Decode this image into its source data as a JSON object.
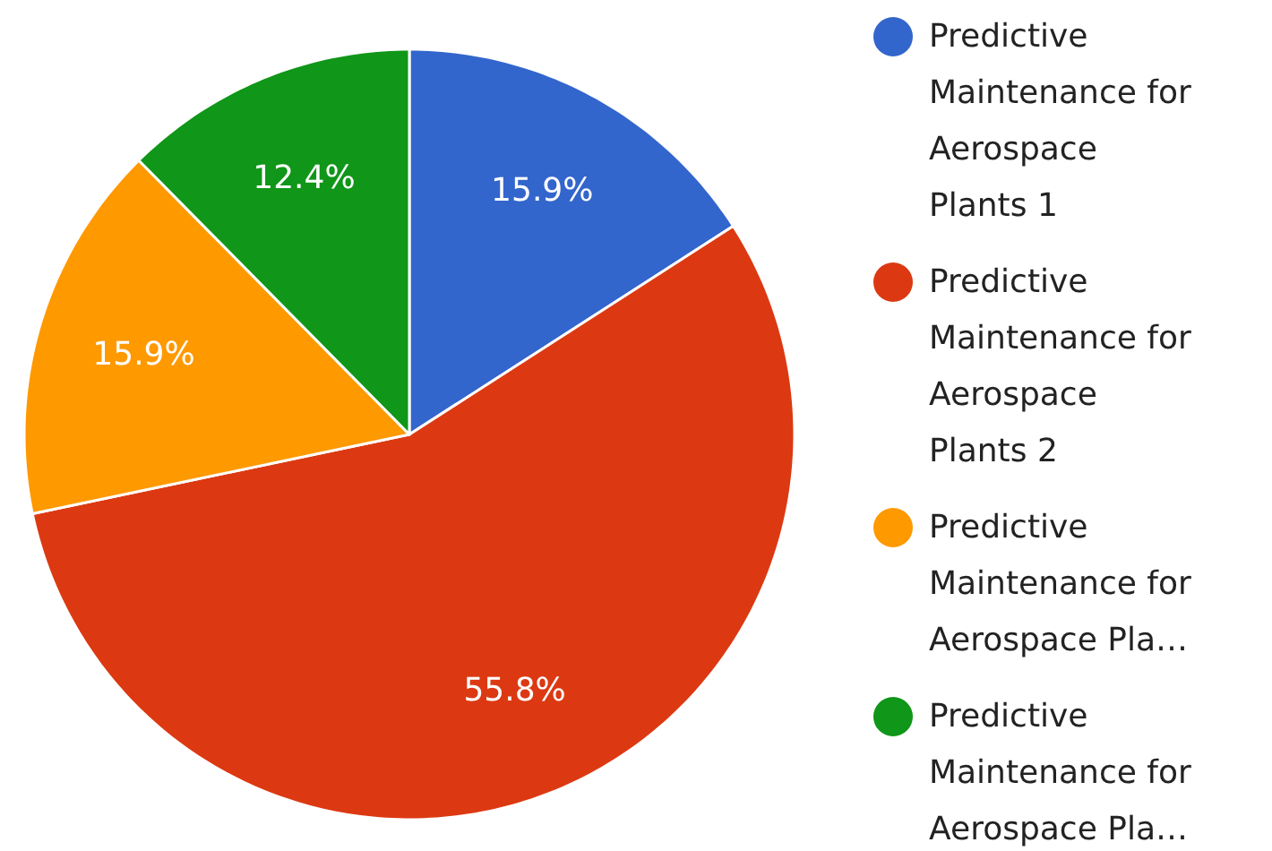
{
  "chart_data": {
    "type": "pie",
    "categories": [
      "Predictive Maintenance for Aerospace Plants 1",
      "Predictive Maintenance for Aerospace Plants 2",
      "Predictive Maintenance for Aerospace Pla…",
      "Predictive Maintenance for Aerospace Pla…"
    ],
    "values": [
      15.9,
      55.8,
      15.9,
      12.4
    ],
    "colors": [
      "#3366cc",
      "#dc3912",
      "#ff9900",
      "#109618"
    ],
    "value_labels": [
      "15.9%",
      "55.8%",
      "15.9%",
      "12.4%"
    ],
    "legend": "right"
  }
}
